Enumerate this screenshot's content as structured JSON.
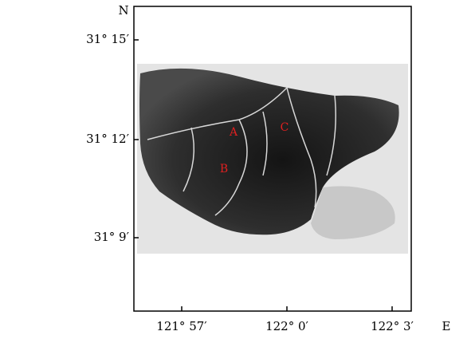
{
  "map": {
    "north_label": "N",
    "east_label": "E",
    "lat_ticks": [
      "31° 15′",
      "31° 12′",
      "31° 9′"
    ],
    "lon_ticks": [
      "121° 57′",
      "122° 0′",
      "122° 3′"
    ],
    "site_labels": [
      "A",
      "B",
      "C"
    ]
  }
}
